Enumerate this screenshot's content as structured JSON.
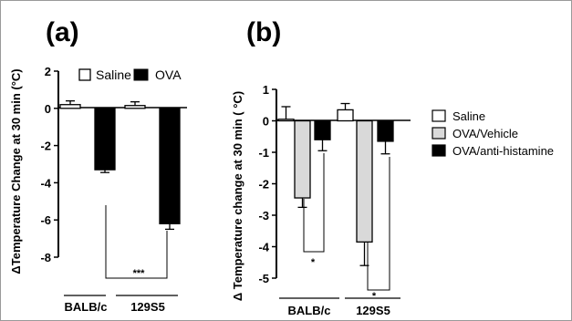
{
  "chart_data": [
    {
      "type": "bar",
      "panel_label": "(a)",
      "ylabel": "ΔTemperature Change at 30 min (°C)",
      "ylim": [
        -8,
        2
      ],
      "yticks": [
        "2",
        "0",
        "-2",
        "-4",
        "-6",
        "-8"
      ],
      "group_labels": [
        "BALB/c",
        "129S5"
      ],
      "series": [
        {
          "name": "Saline",
          "color": "#ffffff",
          "values": [
            0.2,
            0.15
          ],
          "errors": [
            0.2,
            0.2
          ]
        },
        {
          "name": "OVA",
          "color": "#000000",
          "values": [
            -3.3,
            -6.2
          ],
          "errors": [
            0.15,
            0.3
          ]
        }
      ],
      "significance": [
        {
          "label": "***"
        }
      ],
      "legend_position": "top"
    },
    {
      "type": "bar",
      "panel_label": "(b)",
      "ylabel": "Δ Temperature change at 30 min ( °C)",
      "ylim": [
        -5,
        1
      ],
      "yticks": [
        "1",
        "0",
        "-1",
        "-2",
        "-3",
        "-4",
        "-5"
      ],
      "group_labels": [
        "BALB/c",
        "129S5"
      ],
      "series": [
        {
          "name": "Saline",
          "color": "#ffffff",
          "values": [
            0.05,
            0.35
          ],
          "errors": [
            0.4,
            0.2
          ]
        },
        {
          "name": "OVA/Vehicle",
          "color": "#d9d9d9",
          "values": [
            -2.45,
            -3.85
          ],
          "errors": [
            0.3,
            0.75
          ]
        },
        {
          "name": "OVA/anti-histamine",
          "color": "#000000",
          "values": [
            -0.6,
            -0.65
          ],
          "errors": [
            0.35,
            0.4
          ]
        }
      ],
      "significance": [
        {
          "label": "*"
        },
        {
          "label": "*"
        }
      ],
      "legend_position": "right"
    }
  ]
}
